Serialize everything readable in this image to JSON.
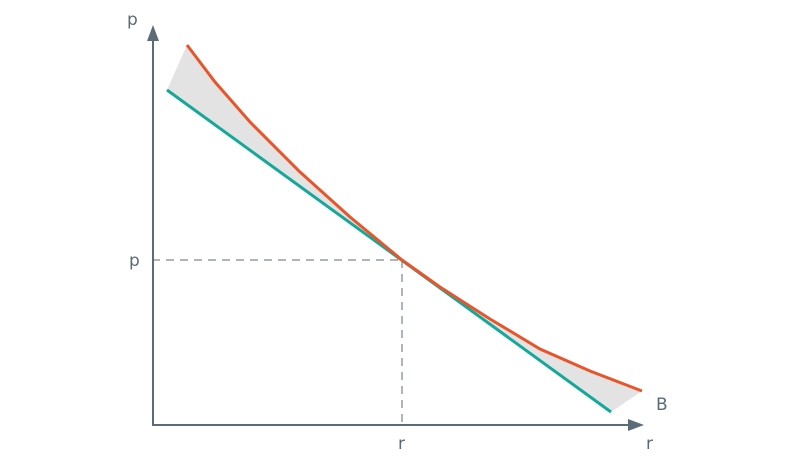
{
  "labels": {
    "y_axis": "p",
    "x_axis": "r",
    "price_tick": "p",
    "rate_tick": "r",
    "curve_end": "B"
  },
  "colors": {
    "axis": "#5c6b78",
    "curve": "#e8552b",
    "tangent": "#14a89a",
    "gap_fill": "#e3e3e3"
  }
}
